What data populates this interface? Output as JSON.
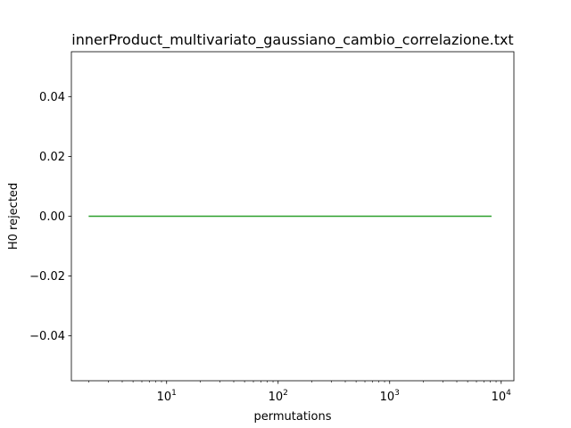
{
  "chart_data": {
    "type": "line",
    "title": "innerProduct_multivariato_gaussiano_cambio_correlazione.txt",
    "xlabel": "permutations",
    "ylabel": "H0 rejected",
    "xscale": "log",
    "xlim": [
      1.4,
      13000
    ],
    "ylim": [
      -0.055,
      0.055
    ],
    "x_ticks": [
      {
        "value": 10,
        "base": "10",
        "exp": "1"
      },
      {
        "value": 100,
        "base": "10",
        "exp": "2"
      },
      {
        "value": 1000,
        "base": "10",
        "exp": "3"
      },
      {
        "value": 10000,
        "base": "10",
        "exp": "4"
      }
    ],
    "y_ticks": [
      {
        "value": 0.04,
        "label": "0.04"
      },
      {
        "value": 0.02,
        "label": "0.02"
      },
      {
        "value": 0.0,
        "label": "0.00"
      },
      {
        "value": -0.02,
        "label": "−0.02"
      },
      {
        "value": -0.04,
        "label": "−0.04"
      }
    ],
    "grid": false,
    "series": [
      {
        "color": "#2ca02c",
        "x": [
          2,
          8192
        ],
        "y": [
          0,
          0
        ]
      }
    ]
  }
}
